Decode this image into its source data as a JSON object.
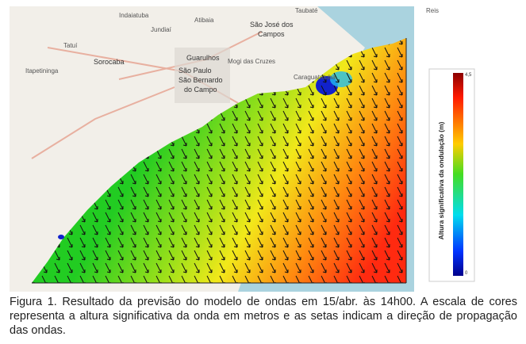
{
  "map": {
    "place_labels": [
      "Indaiatuba",
      "Jundiaí",
      "Atibaia",
      "Taubaté",
      "São José dos",
      "Campos",
      "Sorocaba",
      "Guarulhos",
      "São Paulo",
      "São Bernardo",
      "do Campo",
      "Tatuí",
      "Itapetininga",
      "Mogi das Cruzes",
      "Caraguatatuba",
      "Reis"
    ]
  },
  "colorbar": {
    "title": "Altura significativa da ondulação (m)",
    "max_label": "4,5",
    "min_label": "0"
  },
  "caption": "Figura 1. Resultado da previsão do modelo de ondas em 15/abr. às 14h00. A escala de cores representa a altura significativa da onda em metros e as setas indicam a direção de propagação das ondas."
}
